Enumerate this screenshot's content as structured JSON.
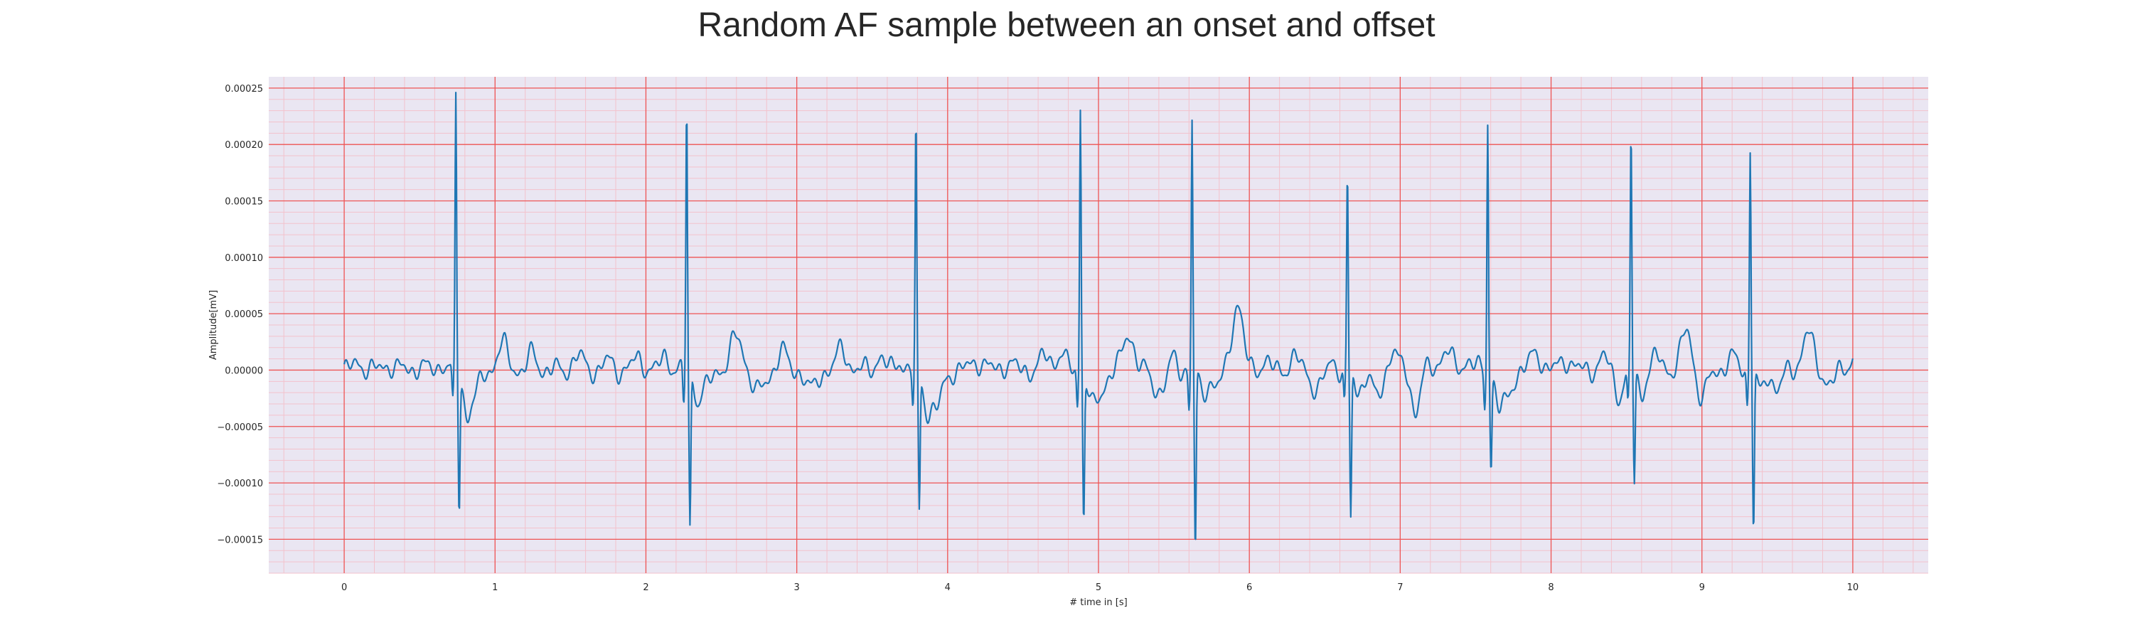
{
  "chart_data": {
    "type": "line",
    "title": "Random AF sample between an onset and offset",
    "xlabel": "# time in [s]",
    "ylabel": "Amplitude[mV]",
    "xlim": [
      -0.5,
      10.5
    ],
    "ylim": [
      -0.00018,
      0.00026
    ],
    "x_ticks": [
      0,
      1,
      2,
      3,
      4,
      5,
      6,
      7,
      8,
      9,
      10
    ],
    "x_tick_labels": [
      "0",
      "1",
      "2",
      "3",
      "4",
      "5",
      "6",
      "7",
      "8",
      "9",
      "10"
    ],
    "y_ticks": [
      -0.00015,
      -0.0001,
      -5e-05,
      0.0,
      5e-05,
      0.0001,
      0.00015,
      0.0002,
      0.00025
    ],
    "y_tick_labels": [
      "−0.00015",
      "−0.00010",
      "−0.00005",
      "0.00000",
      "0.00005",
      "0.00010",
      "0.00015",
      "0.00020",
      "0.00025"
    ],
    "grid": true,
    "grid_major_color": "#ee5555",
    "grid_minor_color": "#f3c2cc",
    "background": "#eae6f2",
    "line_color": "#1f77b4",
    "series": [
      {
        "name": "",
        "peaks": [
          {
            "t": 0.74,
            "r": 0.000242,
            "s": -0.000118
          },
          {
            "t": 2.27,
            "r": 0.000237,
            "s": -0.000141
          },
          {
            "t": 3.79,
            "r": 0.000218,
            "s": -0.000124
          },
          {
            "t": 4.88,
            "r": 0.000236,
            "s": -0.000129
          },
          {
            "t": 5.62,
            "r": 0.00022,
            "s": -0.000162
          },
          {
            "t": 6.65,
            "r": 0.000171,
            "s": -0.000133
          },
          {
            "t": 7.58,
            "r": 0.000223,
            "s": -8.2e-05
          },
          {
            "t": 8.53,
            "r": 0.00021,
            "s": -9.8e-05
          },
          {
            "t": 9.32,
            "r": 0.0002,
            "s": -0.00014
          }
        ],
        "waves": [
          {
            "t": 0.1,
            "a": 6e-06,
            "w": 0.05
          },
          {
            "t": 0.3,
            "a": 5e-06,
            "w": 0.05
          },
          {
            "t": 0.5,
            "a": 4e-06,
            "w": 0.04
          },
          {
            "t": 0.65,
            "a": 7e-06,
            "w": 0.03
          },
          {
            "t": 0.85,
            "a": -2.5e-05,
            "w": 0.06
          },
          {
            "t": 1.05,
            "a": 2.2e-05,
            "w": 0.05
          },
          {
            "t": 1.25,
            "a": 1.4e-05,
            "w": 0.04
          },
          {
            "t": 1.55,
            "a": 1.2e-05,
            "w": 0.05
          },
          {
            "t": 1.75,
            "a": 8e-06,
            "w": 0.04
          },
          {
            "t": 1.95,
            "a": 1e-05,
            "w": 0.05
          },
          {
            "t": 2.13,
            "a": 1.2e-05,
            "w": 0.04
          },
          {
            "t": 2.4,
            "a": -1.5e-05,
            "w": 0.05
          },
          {
            "t": 2.6,
            "a": 2.8e-05,
            "w": 0.06
          },
          {
            "t": 2.75,
            "a": -2e-05,
            "w": 0.06
          },
          {
            "t": 2.9,
            "a": 1.8e-05,
            "w": 0.04
          },
          {
            "t": 3.1,
            "a": -1.8e-05,
            "w": 0.05
          },
          {
            "t": 3.3,
            "a": 1.8e-05,
            "w": 0.05
          },
          {
            "t": 3.55,
            "a": 1.2e-05,
            "w": 0.04
          },
          {
            "t": 3.68,
            "a": 1e-05,
            "w": 0.03
          },
          {
            "t": 3.92,
            "a": -3.5e-05,
            "w": 0.06
          },
          {
            "t": 4.2,
            "a": 8e-06,
            "w": 0.06
          },
          {
            "t": 4.4,
            "a": 6e-06,
            "w": 0.05
          },
          {
            "t": 4.65,
            "a": 1.2e-05,
            "w": 0.05
          },
          {
            "t": 4.75,
            "a": 1.5e-05,
            "w": 0.04
          },
          {
            "t": 5.0,
            "a": -2.5e-05,
            "w": 0.05
          },
          {
            "t": 5.2,
            "a": 3.3e-05,
            "w": 0.05
          },
          {
            "t": 5.4,
            "a": -1.8e-05,
            "w": 0.06
          },
          {
            "t": 5.5,
            "a": 1.2e-05,
            "w": 0.03
          },
          {
            "t": 5.78,
            "a": -1.5e-05,
            "w": 0.05
          },
          {
            "t": 5.92,
            "a": 6e-05,
            "w": 0.05
          },
          {
            "t": 6.1,
            "a": 8e-06,
            "w": 0.04
          },
          {
            "t": 6.3,
            "a": 1e-05,
            "w": 0.05
          },
          {
            "t": 6.45,
            "a": -1.8e-05,
            "w": 0.05
          },
          {
            "t": 6.55,
            "a": 1e-05,
            "w": 0.03
          },
          {
            "t": 6.85,
            "a": -2.5e-05,
            "w": 0.05
          },
          {
            "t": 6.95,
            "a": 2e-05,
            "w": 0.04
          },
          {
            "t": 7.1,
            "a": -3.5e-05,
            "w": 0.04
          },
          {
            "t": 7.3,
            "a": 1.8e-05,
            "w": 0.05
          },
          {
            "t": 7.45,
            "a": 1e-05,
            "w": 0.04
          },
          {
            "t": 7.7,
            "a": -2.8e-05,
            "w": 0.05
          },
          {
            "t": 7.9,
            "a": 1.5e-05,
            "w": 0.05
          },
          {
            "t": 8.1,
            "a": 1e-05,
            "w": 0.05
          },
          {
            "t": 8.35,
            "a": 1e-05,
            "w": 0.05
          },
          {
            "t": 8.45,
            "a": -2.2e-05,
            "w": 0.04
          },
          {
            "t": 8.7,
            "a": 1e-05,
            "w": 0.05
          },
          {
            "t": 8.9,
            "a": 3.5e-05,
            "w": 0.05
          },
          {
            "t": 9.0,
            "a": -2.5e-05,
            "w": 0.05
          },
          {
            "t": 9.2,
            "a": 1e-05,
            "w": 0.05
          },
          {
            "t": 9.5,
            "a": -1.5e-05,
            "w": 0.05
          },
          {
            "t": 9.7,
            "a": 3.3e-05,
            "w": 0.05
          },
          {
            "t": 9.85,
            "a": -1.2e-05,
            "w": 0.05
          },
          {
            "t": 10.0,
            "a": 1.2e-05,
            "w": 0.04
          }
        ]
      }
    ]
  }
}
